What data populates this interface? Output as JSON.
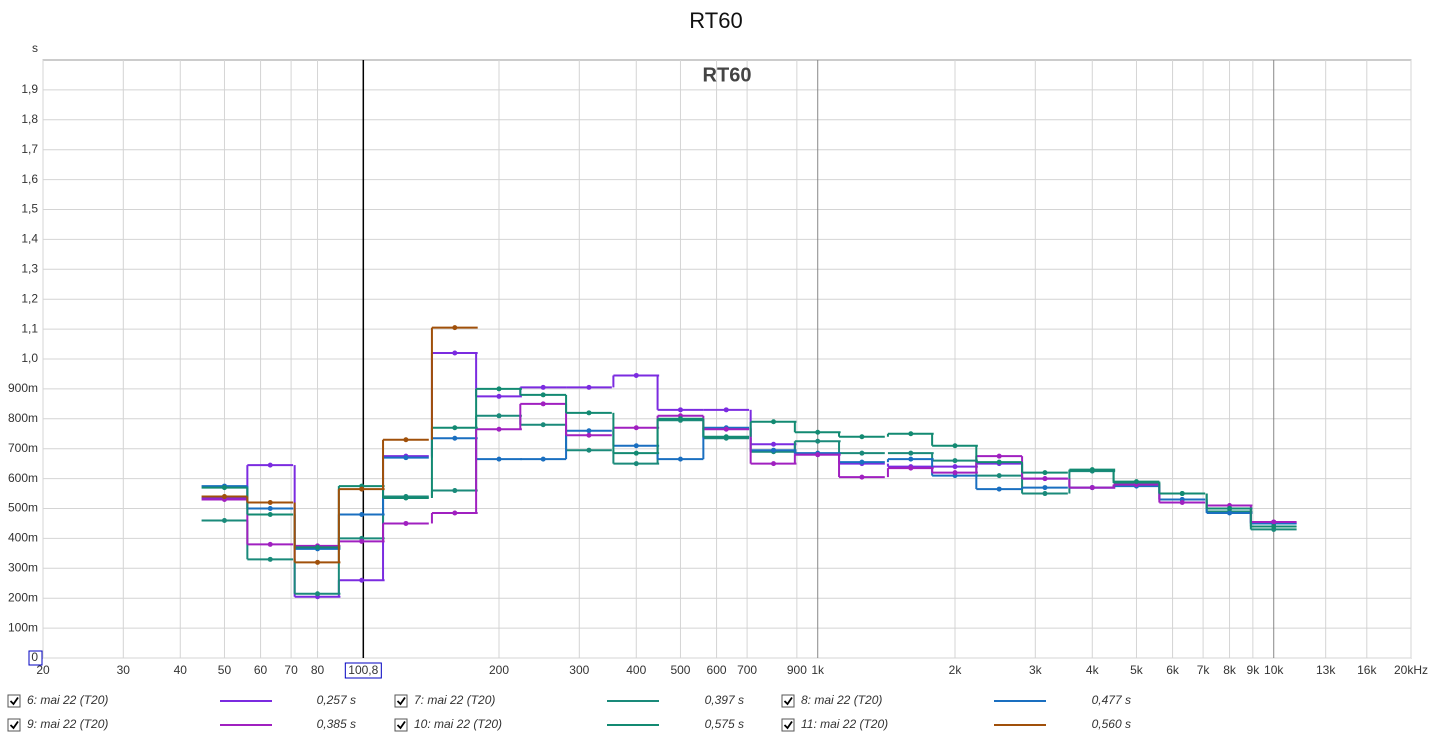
{
  "chart_data": {
    "type": "step",
    "title": "RT60",
    "plot_title": "RT60",
    "y_label": "s",
    "xscale": "log",
    "grid": true,
    "xlim": [
      20,
      20000
    ],
    "ylim": [
      0,
      2
    ],
    "xticks": [
      20,
      30,
      40,
      50,
      60,
      70,
      80,
      200,
      300,
      400,
      500,
      600,
      700,
      900,
      {
        "value": 1000,
        "label": "1k"
      },
      {
        "value": 2000,
        "label": "2k"
      },
      {
        "value": 3000,
        "label": "3k"
      },
      {
        "value": 4000,
        "label": "4k"
      },
      {
        "value": 5000,
        "label": "5k"
      },
      {
        "value": 6000,
        "label": "6k"
      },
      {
        "value": 7000,
        "label": "7k"
      },
      {
        "value": 8000,
        "label": "8k"
      },
      {
        "value": 9000,
        "label": "9k"
      },
      {
        "value": 10000,
        "label": "10k"
      },
      {
        "value": 13000,
        "label": "13k"
      },
      {
        "value": 16000,
        "label": "16k"
      },
      {
        "value": 20000,
        "label": "20kHz"
      }
    ],
    "yticks": [
      0,
      {
        "value": 0.1,
        "label": "100m"
      },
      {
        "value": 0.2,
        "label": "200m"
      },
      {
        "value": 0.3,
        "label": "300m"
      },
      {
        "value": 0.4,
        "label": "400m"
      },
      {
        "value": 0.5,
        "label": "500m"
      },
      {
        "value": 0.6,
        "label": "600m"
      },
      {
        "value": 0.7,
        "label": "700m"
      },
      {
        "value": 0.8,
        "label": "800m"
      },
      {
        "value": 0.9,
        "label": "900m"
      },
      {
        "value": 1.0,
        "label": "1,0"
      },
      {
        "value": 1.1,
        "label": "1,1"
      },
      {
        "value": 1.2,
        "label": "1,2"
      },
      {
        "value": 1.3,
        "label": "1,3"
      },
      {
        "value": 1.4,
        "label": "1,4"
      },
      {
        "value": 1.5,
        "label": "1,5"
      },
      {
        "value": 1.6,
        "label": "1,6"
      },
      {
        "value": 1.7,
        "label": "1,7"
      },
      {
        "value": 1.8,
        "label": "1,8"
      },
      {
        "value": 1.9,
        "label": "1,9"
      }
    ],
    "cursor": {
      "value": 100.8,
      "label": "100,8"
    },
    "x": [
      50,
      63,
      80,
      100,
      125,
      160,
      200,
      250,
      315,
      400,
      500,
      630,
      800,
      1000,
      1250,
      1600,
      2000,
      2500,
      3150,
      4000,
      5000,
      6300,
      8000,
      10000
    ],
    "series": [
      {
        "name": "6: mai 22 (T20)",
        "legend_value": "0,257 s",
        "color": "#7b2be0",
        "values": [
          0.535,
          0.645,
          0.205,
          0.26,
          0.675,
          1.02,
          0.875,
          0.905,
          0.905,
          0.945,
          0.83,
          0.83,
          0.715,
          0.68,
          0.65,
          0.64,
          0.64,
          0.65,
          0.6,
          0.57,
          0.58,
          0.53,
          0.5,
          0.45
        ]
      },
      {
        "name": "7: mai 22 (T20)",
        "legend_value": "0,397 s",
        "color": "#1a8a7a",
        "values": [
          0.46,
          0.33,
          0.215,
          0.4,
          0.54,
          0.56,
          0.81,
          0.78,
          0.695,
          0.65,
          0.795,
          0.735,
          0.69,
          0.725,
          0.685,
          0.685,
          0.66,
          0.61,
          0.55,
          0.625,
          0.585,
          0.55,
          0.49,
          0.43
        ]
      },
      {
        "name": "8: mai 22 (T20)",
        "legend_value": "0,477 s",
        "color": "#1a6fc0",
        "values": [
          0.575,
          0.5,
          0.365,
          0.48,
          0.67,
          0.735,
          0.665,
          0.665,
          0.76,
          0.71,
          0.665,
          0.77,
          0.695,
          0.685,
          0.655,
          0.665,
          0.61,
          0.565,
          0.57,
          0.57,
          0.575,
          0.53,
          0.485,
          0.45
        ]
      },
      {
        "name": "9: mai 22 (T20)",
        "legend_value": "0,385 s",
        "color": "#a020c0",
        "values": [
          0.53,
          0.38,
          0.375,
          0.39,
          0.45,
          0.485,
          0.765,
          0.85,
          0.745,
          0.77,
          0.81,
          0.765,
          0.65,
          0.68,
          0.605,
          0.635,
          0.62,
          0.675,
          0.6,
          0.57,
          0.58,
          0.52,
          0.51,
          0.455
        ]
      },
      {
        "name": "10: mai 22 (T20)",
        "legend_value": "0,575 s",
        "color": "#138a72",
        "values": [
          0.57,
          0.48,
          0.37,
          0.575,
          0.535,
          0.77,
          0.9,
          0.88,
          0.82,
          0.685,
          0.8,
          0.74,
          0.79,
          0.755,
          0.74,
          0.75,
          0.71,
          0.655,
          0.62,
          0.63,
          0.59,
          0.55,
          0.5,
          0.44
        ]
      },
      {
        "name": "11: mai 22 (T20)",
        "legend_value": "0,560 s",
        "color": "#a0500a",
        "values": [
          0.54,
          0.52,
          0.32,
          0.565,
          0.73,
          1.105,
          null,
          null,
          null,
          null,
          null,
          null,
          null,
          null,
          null,
          null,
          null,
          null,
          null,
          null,
          null,
          null,
          null,
          null
        ]
      }
    ]
  }
}
